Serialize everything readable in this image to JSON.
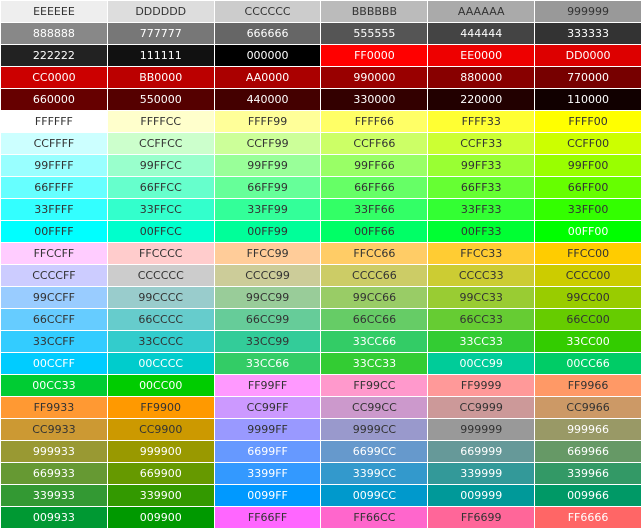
{
  "palette": {
    "rows": [
      [
        "EEEEEE",
        "DDDDDD",
        "CCCCCC",
        "BBBBBB",
        "AAAAAA",
        "999999"
      ],
      [
        "888888",
        "777777",
        "666666",
        "555555",
        "444444",
        "333333"
      ],
      [
        "222222",
        "111111",
        "000000",
        "FF0000",
        "EE0000",
        "DD0000"
      ],
      [
        "CC0000",
        "BB0000",
        "AA0000",
        "990000",
        "880000",
        "770000"
      ],
      [
        "660000",
        "550000",
        "440000",
        "330000",
        "220000",
        "110000"
      ],
      [
        "FFFFFF",
        "FFFFCC",
        "FFFF99",
        "FFFF66",
        "FFFF33",
        "FFFF00"
      ],
      [
        "CCFFFF",
        "CCFFCC",
        "CCFF99",
        "CCFF66",
        "CCFF33",
        "CCFF00"
      ],
      [
        "99FFFF",
        "99FFCC",
        "99FF99",
        "99FF66",
        "99FF33",
        "99FF00"
      ],
      [
        "66FFFF",
        "66FFCC",
        "66FF99",
        "66FF66",
        "66FF33",
        "66FF00"
      ],
      [
        "33FFFF",
        "33FFCC",
        "33FF99",
        "33FF66",
        "33FF33",
        "33FF00"
      ],
      [
        "00FFFF",
        "00FFCC",
        "00FF99",
        "00FF66",
        "00FF33",
        "00FF00"
      ],
      [
        "FFCCFF",
        "FFCCCC",
        "FFCC99",
        "FFCC66",
        "FFCC33",
        "FFCC00"
      ],
      [
        "CCCCFF",
        "CCCCCC",
        "CCCC99",
        "CCCC66",
        "CCCC33",
        "CCCC00"
      ],
      [
        "99CCFF",
        "99CCCC",
        "99CC99",
        "99CC66",
        "99CC33",
        "99CC00"
      ],
      [
        "66CCFF",
        "66CCCC",
        "66CC99",
        "66CC66",
        "66CC33",
        "66CC00"
      ],
      [
        "33CCFF",
        "33CCCC",
        "33CC99",
        "33CC66",
        "33CC33",
        "33CC00"
      ],
      [
        "00CCFF",
        "00CCCC",
        "33CC66",
        "33CC33",
        "00CC99",
        "00CC66"
      ],
      [
        "00CC33",
        "00CC00",
        "FF99FF",
        "FF99CC",
        "FF9999",
        "FF9966"
      ],
      [
        "FF9933",
        "FF9900",
        "CC99FF",
        "CC99CC",
        "CC9999",
        "CC9966"
      ],
      [
        "CC9933",
        "CC9900",
        "9999FF",
        "9999CC",
        "999999",
        "999966"
      ],
      [
        "999933",
        "999900",
        "6699FF",
        "6699CC",
        "669999",
        "669966"
      ],
      [
        "669933",
        "669900",
        "3399FF",
        "3399CC",
        "339999",
        "339966"
      ],
      [
        "339933",
        "339900",
        "0099FF",
        "0099CC",
        "009999",
        "009966"
      ],
      [
        "009933",
        "009900",
        "FF66FF",
        "FF66CC",
        "FF6699",
        "FF6666"
      ]
    ]
  }
}
